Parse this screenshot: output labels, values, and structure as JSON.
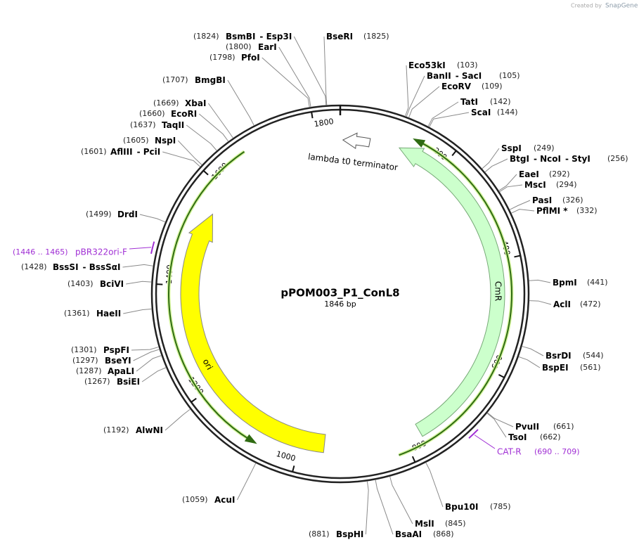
{
  "title": "pPOM003_P1_ConL8",
  "length": "1846 bp",
  "watermark": {
    "prefix": "Created by",
    "brand": "SnapGene"
  },
  "ticks": [
    200,
    400,
    600,
    800,
    1000,
    1200,
    1400,
    1600,
    1800
  ],
  "features": [
    {
      "name": "lambda t0 terminator"
    },
    {
      "name": "CmR"
    },
    {
      "name": "ori"
    }
  ],
  "primers": [
    {
      "name": "pBR322ori-F",
      "range": "(1446 .. 1465)"
    },
    {
      "name": "CAT-R",
      "range": "(690 .. 709)"
    }
  ],
  "sites": [
    {
      "position": "(1825)",
      "names": [
        "BseRI"
      ]
    },
    {
      "position": "(103)",
      "names": [
        "Eco53kI"
      ]
    },
    {
      "position": "(105)",
      "names": [
        "BanII",
        "- SacI"
      ]
    },
    {
      "position": "(109)",
      "names": [
        "EcoRV"
      ]
    },
    {
      "position": "(142)",
      "names": [
        "TatI"
      ]
    },
    {
      "position": "(144)",
      "names": [
        "ScaI"
      ]
    },
    {
      "position": "(249)",
      "names": [
        "SspI"
      ]
    },
    {
      "position": "(256)",
      "names": [
        "BtgI",
        "- NcoI",
        "- StyI"
      ]
    },
    {
      "position": "(292)",
      "names": [
        "EaeI"
      ]
    },
    {
      "position": "(294)",
      "names": [
        "MscI"
      ]
    },
    {
      "position": "(326)",
      "names": [
        "PasI"
      ]
    },
    {
      "position": "(332)",
      "names": [
        "PflMI *"
      ]
    },
    {
      "position": "(441)",
      "names": [
        "BpmI"
      ]
    },
    {
      "position": "(472)",
      "names": [
        "AclI"
      ]
    },
    {
      "position": "(544)",
      "names": [
        "BsrDI"
      ]
    },
    {
      "position": "(561)",
      "names": [
        "BspEI"
      ]
    },
    {
      "position": "(661)",
      "names": [
        "PvuII"
      ]
    },
    {
      "position": "(662)",
      "names": [
        "TsoI"
      ]
    },
    {
      "position": "(785)",
      "names": [
        "Bpu10I"
      ]
    },
    {
      "position": "(845)",
      "names": [
        "MslI"
      ]
    },
    {
      "position": "(868)",
      "names": [
        "BsaAI"
      ]
    },
    {
      "position": "(1824)",
      "names": [
        "BsmBI",
        "- Esp3I"
      ]
    },
    {
      "position": "(1800)",
      "names": [
        "EarI"
      ]
    },
    {
      "position": "(1798)",
      "names": [
        "PfoI"
      ]
    },
    {
      "position": "(1707)",
      "names": [
        "BmgBI"
      ]
    },
    {
      "position": "(1669)",
      "names": [
        "XbaI"
      ]
    },
    {
      "position": "(1660)",
      "names": [
        "EcoRI"
      ]
    },
    {
      "position": "(1637)",
      "names": [
        "TaqII"
      ]
    },
    {
      "position": "(1605)",
      "names": [
        "NspI"
      ]
    },
    {
      "position": "(1601)",
      "names": [
        "AflIII",
        "- PciI"
      ]
    },
    {
      "position": "(1499)",
      "names": [
        "DrdI"
      ]
    },
    {
      "position": "(1428)",
      "names": [
        "BssSI",
        "- BssSαI"
      ]
    },
    {
      "position": "(1403)",
      "names": [
        "BciVI"
      ]
    },
    {
      "position": "(1361)",
      "names": [
        "HaeII"
      ]
    },
    {
      "position": "(1301)",
      "names": [
        "PspFI"
      ]
    },
    {
      "position": "(1297)",
      "names": [
        "BseYI"
      ]
    },
    {
      "position": "(1287)",
      "names": [
        "ApaLI"
      ]
    },
    {
      "position": "(1267)",
      "names": [
        "BsiEI"
      ]
    },
    {
      "position": "(1192)",
      "names": [
        "AlwNI"
      ]
    },
    {
      "position": "(1059)",
      "names": [
        "AcuI"
      ]
    },
    {
      "position": "(881)",
      "names": [
        "BspHI"
      ]
    }
  ]
}
